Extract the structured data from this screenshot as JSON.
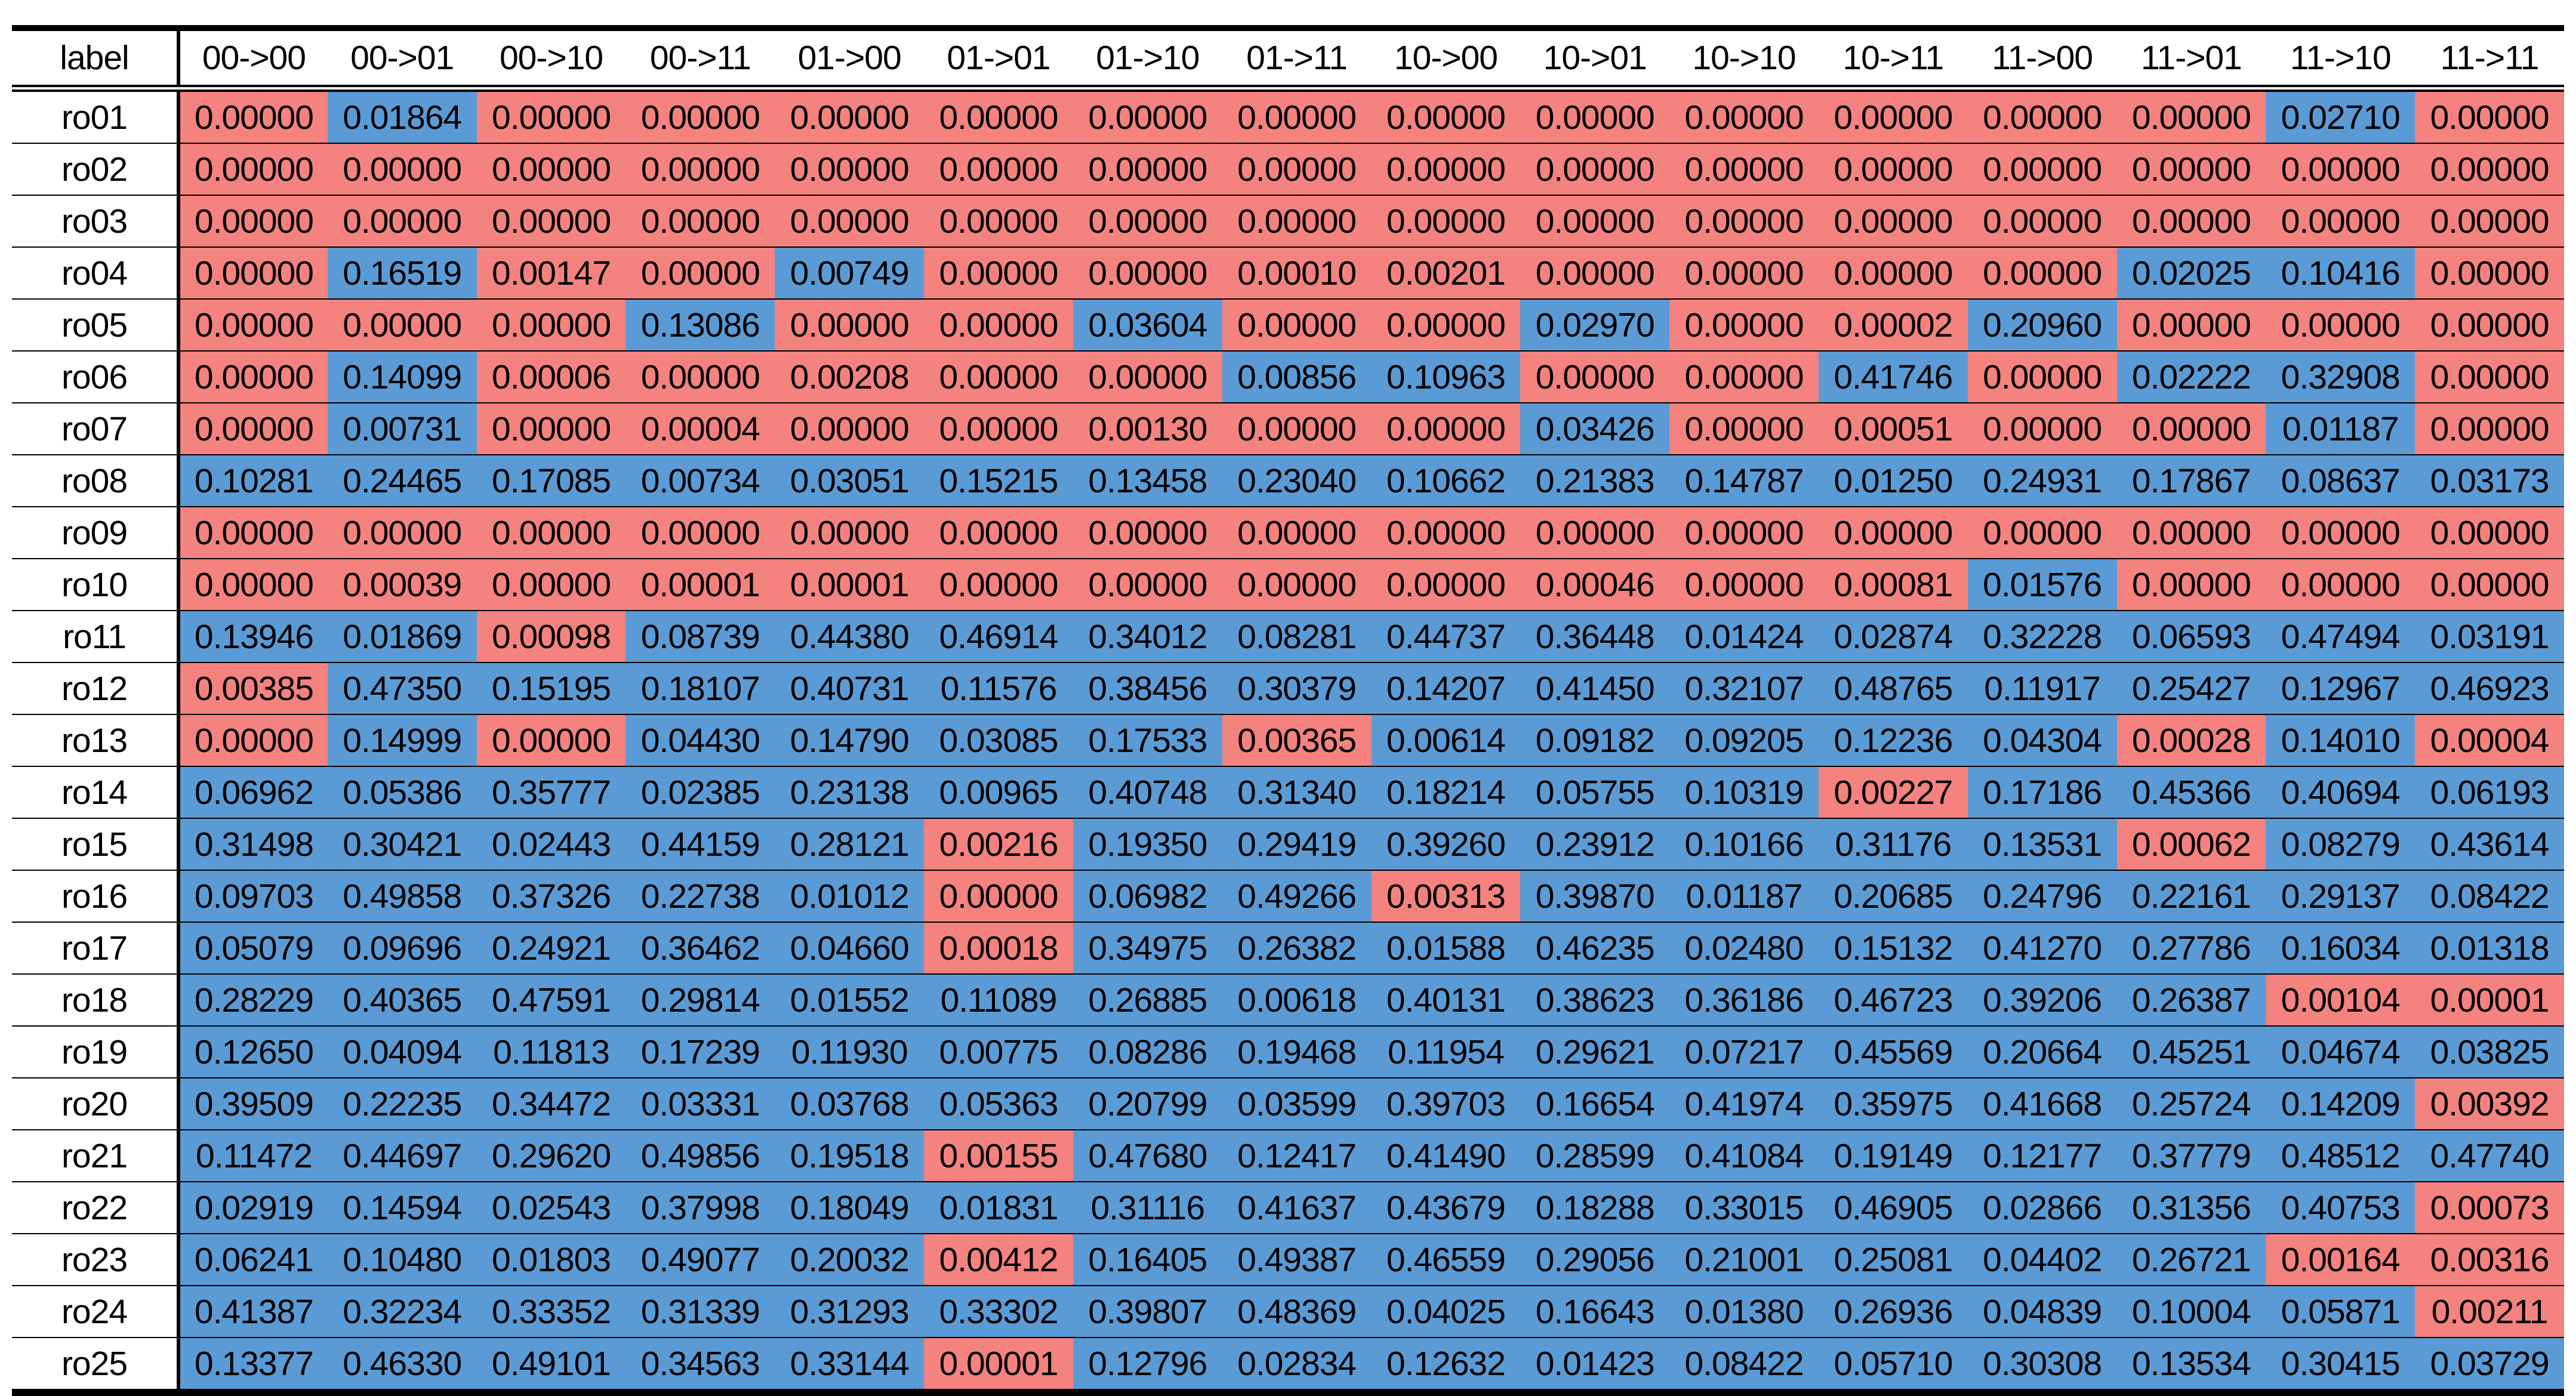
{
  "chart_data": {
    "type": "table",
    "header": [
      "label",
      "00->00",
      "00->01",
      "00->10",
      "00->11",
      "01->00",
      "01->01",
      "01->10",
      "01->11",
      "10->00",
      "10->01",
      "10->10",
      "10->11",
      "11->00",
      "11->01",
      "11->10",
      "11->11"
    ],
    "cell_colors": {
      "r": "#f4827e",
      "b": "#5b9bd5"
    },
    "rows": [
      {
        "label": "ro01",
        "colors": "rbrrrrrrrrrrrrbr",
        "values": [
          "0.00000",
          "0.01864",
          "0.00000",
          "0.00000",
          "0.00000",
          "0.00000",
          "0.00000",
          "0.00000",
          "0.00000",
          "0.00000",
          "0.00000",
          "0.00000",
          "0.00000",
          "0.00000",
          "0.02710",
          "0.00000"
        ]
      },
      {
        "label": "ro02",
        "colors": "rrrrrrrrrrrrrrrr",
        "values": [
          "0.00000",
          "0.00000",
          "0.00000",
          "0.00000",
          "0.00000",
          "0.00000",
          "0.00000",
          "0.00000",
          "0.00000",
          "0.00000",
          "0.00000",
          "0.00000",
          "0.00000",
          "0.00000",
          "0.00000",
          "0.00000"
        ]
      },
      {
        "label": "ro03",
        "colors": "rrrrrrrrrrrrrrrr",
        "values": [
          "0.00000",
          "0.00000",
          "0.00000",
          "0.00000",
          "0.00000",
          "0.00000",
          "0.00000",
          "0.00000",
          "0.00000",
          "0.00000",
          "0.00000",
          "0.00000",
          "0.00000",
          "0.00000",
          "0.00000",
          "0.00000"
        ]
      },
      {
        "label": "ro04",
        "colors": "rbrrbrrrrrrrrbbr",
        "values": [
          "0.00000",
          "0.16519",
          "0.00147",
          "0.00000",
          "0.00749",
          "0.00000",
          "0.00000",
          "0.00010",
          "0.00201",
          "0.00000",
          "0.00000",
          "0.00000",
          "0.00000",
          "0.02025",
          "0.10416",
          "0.00000"
        ]
      },
      {
        "label": "ro05",
        "colors": "rrrbrrbrrbrrbrrr",
        "values": [
          "0.00000",
          "0.00000",
          "0.00000",
          "0.13086",
          "0.00000",
          "0.00000",
          "0.03604",
          "0.00000",
          "0.00000",
          "0.02970",
          "0.00000",
          "0.00002",
          "0.20960",
          "0.00000",
          "0.00000",
          "0.00000"
        ]
      },
      {
        "label": "ro06",
        "colors": "rbrrrrrbbrrbrbbr",
        "values": [
          "0.00000",
          "0.14099",
          "0.00006",
          "0.00000",
          "0.00208",
          "0.00000",
          "0.00000",
          "0.00856",
          "0.10963",
          "0.00000",
          "0.00000",
          "0.41746",
          "0.00000",
          "0.02222",
          "0.32908",
          "0.00000"
        ]
      },
      {
        "label": "ro07",
        "colors": "rbrrrrrrrbrrrrbr",
        "values": [
          "0.00000",
          "0.00731",
          "0.00000",
          "0.00004",
          "0.00000",
          "0.00000",
          "0.00130",
          "0.00000",
          "0.00000",
          "0.03426",
          "0.00000",
          "0.00051",
          "0.00000",
          "0.00000",
          "0.01187",
          "0.00000"
        ]
      },
      {
        "label": "ro08",
        "colors": "bbbbbbbbbbbbbbbb",
        "values": [
          "0.10281",
          "0.24465",
          "0.17085",
          "0.00734",
          "0.03051",
          "0.15215",
          "0.13458",
          "0.23040",
          "0.10662",
          "0.21383",
          "0.14787",
          "0.01250",
          "0.24931",
          "0.17867",
          "0.08637",
          "0.03173"
        ]
      },
      {
        "label": "ro09",
        "colors": "rrrrrrrrrrrrrrrr",
        "values": [
          "0.00000",
          "0.00000",
          "0.00000",
          "0.00000",
          "0.00000",
          "0.00000",
          "0.00000",
          "0.00000",
          "0.00000",
          "0.00000",
          "0.00000",
          "0.00000",
          "0.00000",
          "0.00000",
          "0.00000",
          "0.00000"
        ]
      },
      {
        "label": "ro10",
        "colors": "rrrrrrrrrrrrbrrr",
        "values": [
          "0.00000",
          "0.00039",
          "0.00000",
          "0.00001",
          "0.00001",
          "0.00000",
          "0.00000",
          "0.00000",
          "0.00000",
          "0.00046",
          "0.00000",
          "0.00081",
          "0.01576",
          "0.00000",
          "0.00000",
          "0.00000"
        ]
      },
      {
        "label": "ro11",
        "colors": "bbrbbbbbbbbbbbbb",
        "values": [
          "0.13946",
          "0.01869",
          "0.00098",
          "0.08739",
          "0.44380",
          "0.46914",
          "0.34012",
          "0.08281",
          "0.44737",
          "0.36448",
          "0.01424",
          "0.02874",
          "0.32228",
          "0.06593",
          "0.47494",
          "0.03191"
        ]
      },
      {
        "label": "ro12",
        "colors": "rbbbbbbbbbbbbbbb",
        "values": [
          "0.00385",
          "0.47350",
          "0.15195",
          "0.18107",
          "0.40731",
          "0.11576",
          "0.38456",
          "0.30379",
          "0.14207",
          "0.41450",
          "0.32107",
          "0.48765",
          "0.11917",
          "0.25427",
          "0.12967",
          "0.46923"
        ]
      },
      {
        "label": "ro13",
        "colors": "rbrbbbbrbbbbbrbr",
        "values": [
          "0.00000",
          "0.14999",
          "0.00000",
          "0.04430",
          "0.14790",
          "0.03085",
          "0.17533",
          "0.00365",
          "0.00614",
          "0.09182",
          "0.09205",
          "0.12236",
          "0.04304",
          "0.00028",
          "0.14010",
          "0.00004"
        ]
      },
      {
        "label": "ro14",
        "colors": "bbbbbbbbbbbrbbbb",
        "values": [
          "0.06962",
          "0.05386",
          "0.35777",
          "0.02385",
          "0.23138",
          "0.00965",
          "0.40748",
          "0.31340",
          "0.18214",
          "0.05755",
          "0.10319",
          "0.00227",
          "0.17186",
          "0.45366",
          "0.40694",
          "0.06193"
        ]
      },
      {
        "label": "ro15",
        "colors": "bbbbbrbbbbbbbrbb",
        "values": [
          "0.31498",
          "0.30421",
          "0.02443",
          "0.44159",
          "0.28121",
          "0.00216",
          "0.19350",
          "0.29419",
          "0.39260",
          "0.23912",
          "0.10166",
          "0.31176",
          "0.13531",
          "0.00062",
          "0.08279",
          "0.43614"
        ]
      },
      {
        "label": "ro16",
        "colors": "bbbbbrbbrbbbbbbb",
        "values": [
          "0.09703",
          "0.49858",
          "0.37326",
          "0.22738",
          "0.01012",
          "0.00000",
          "0.06982",
          "0.49266",
          "0.00313",
          "0.39870",
          "0.01187",
          "0.20685",
          "0.24796",
          "0.22161",
          "0.29137",
          "0.08422"
        ]
      },
      {
        "label": "ro17",
        "colors": "bbbbbrbbbbbbbbbb",
        "values": [
          "0.05079",
          "0.09696",
          "0.24921",
          "0.36462",
          "0.04660",
          "0.00018",
          "0.34975",
          "0.26382",
          "0.01588",
          "0.46235",
          "0.02480",
          "0.15132",
          "0.41270",
          "0.27786",
          "0.16034",
          "0.01318"
        ]
      },
      {
        "label": "ro18",
        "colors": "bbbbbbbbbbbbbbrr",
        "values": [
          "0.28229",
          "0.40365",
          "0.47591",
          "0.29814",
          "0.01552",
          "0.11089",
          "0.26885",
          "0.00618",
          "0.40131",
          "0.38623",
          "0.36186",
          "0.46723",
          "0.39206",
          "0.26387",
          "0.00104",
          "0.00001"
        ]
      },
      {
        "label": "ro19",
        "colors": "bbbbbbbbbbbbbbbb",
        "values": [
          "0.12650",
          "0.04094",
          "0.11813",
          "0.17239",
          "0.11930",
          "0.00775",
          "0.08286",
          "0.19468",
          "0.11954",
          "0.29621",
          "0.07217",
          "0.45569",
          "0.20664",
          "0.45251",
          "0.04674",
          "0.03825"
        ]
      },
      {
        "label": "ro20",
        "colors": "bbbbbbbbbbbbbbbr",
        "values": [
          "0.39509",
          "0.22235",
          "0.34472",
          "0.03331",
          "0.03768",
          "0.05363",
          "0.20799",
          "0.03599",
          "0.39703",
          "0.16654",
          "0.41974",
          "0.35975",
          "0.41668",
          "0.25724",
          "0.14209",
          "0.00392"
        ]
      },
      {
        "label": "ro21",
        "colors": "bbbbbrbbbbbbbbbb",
        "values": [
          "0.11472",
          "0.44697",
          "0.29620",
          "0.49856",
          "0.19518",
          "0.00155",
          "0.47680",
          "0.12417",
          "0.41490",
          "0.28599",
          "0.41084",
          "0.19149",
          "0.12177",
          "0.37779",
          "0.48512",
          "0.47740"
        ]
      },
      {
        "label": "ro22",
        "colors": "bbbbbbbbbbbbbbbr",
        "values": [
          "0.02919",
          "0.14594",
          "0.02543",
          "0.37998",
          "0.18049",
          "0.01831",
          "0.31116",
          "0.41637",
          "0.43679",
          "0.18288",
          "0.33015",
          "0.46905",
          "0.02866",
          "0.31356",
          "0.40753",
          "0.00073"
        ]
      },
      {
        "label": "ro23",
        "colors": "bbbbbrbbbbbbbbrr",
        "values": [
          "0.06241",
          "0.10480",
          "0.01803",
          "0.49077",
          "0.20032",
          "0.00412",
          "0.16405",
          "0.49387",
          "0.46559",
          "0.29056",
          "0.21001",
          "0.25081",
          "0.04402",
          "0.26721",
          "0.00164",
          "0.00316"
        ]
      },
      {
        "label": "ro24",
        "colors": "bbbbbbbbbbbbbbbr",
        "values": [
          "0.41387",
          "0.32234",
          "0.33352",
          "0.31339",
          "0.31293",
          "0.33302",
          "0.39807",
          "0.48369",
          "0.04025",
          "0.16643",
          "0.01380",
          "0.26936",
          "0.04839",
          "0.10004",
          "0.05871",
          "0.00211"
        ]
      },
      {
        "label": "ro25",
        "colors": "bbbbbrbbbbbbbbbb",
        "values": [
          "0.13377",
          "0.46330",
          "0.49101",
          "0.34563",
          "0.33144",
          "0.00001",
          "0.12796",
          "0.02834",
          "0.12632",
          "0.01423",
          "0.08422",
          "0.05710",
          "0.30308",
          "0.13534",
          "0.30415",
          "0.03729"
        ]
      }
    ]
  }
}
